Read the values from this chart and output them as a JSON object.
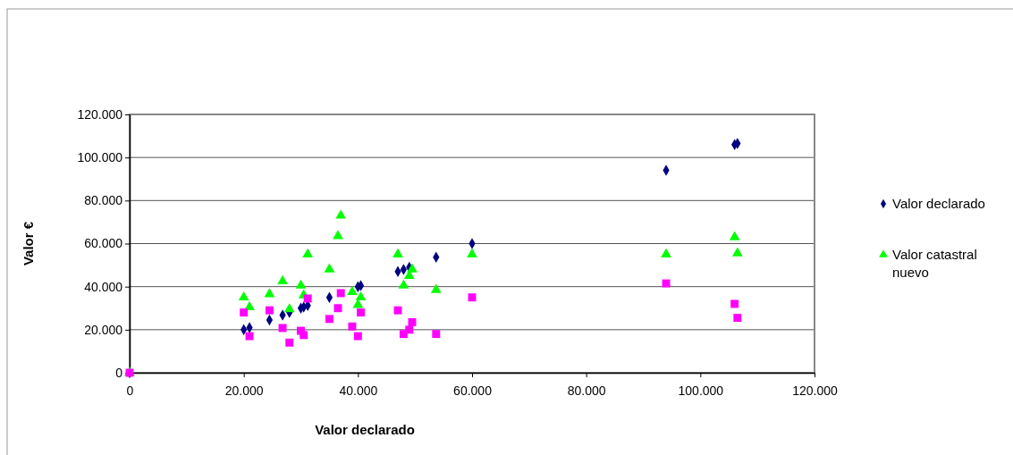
{
  "chart_data": {
    "type": "scatter",
    "xlabel": "Valor declarado",
    "ylabel": "Valor €",
    "xlim": [
      0,
      120000
    ],
    "ylim": [
      0,
      120000
    ],
    "xticks": [
      {
        "value": 0,
        "label": "0"
      },
      {
        "value": 20000,
        "label": "20.000"
      },
      {
        "value": 40000,
        "label": "40.000"
      },
      {
        "value": 60000,
        "label": "60.000"
      },
      {
        "value": 80000,
        "label": "80.000"
      },
      {
        "value": 100000,
        "label": "100.000"
      },
      {
        "value": 120000,
        "label": "120.000"
      }
    ],
    "yticks": [
      {
        "value": 0,
        "label": "0"
      },
      {
        "value": 20000,
        "label": "20.000"
      },
      {
        "value": 40000,
        "label": "40.000"
      },
      {
        "value": 60000,
        "label": "60.000"
      },
      {
        "value": 80000,
        "label": "80.000"
      },
      {
        "value": 100000,
        "label": "100.000"
      },
      {
        "value": 120000,
        "label": "120.000"
      }
    ],
    "grid": "y",
    "legend": "right",
    "x": [
      0,
      20000,
      21000,
      24500,
      26800,
      28000,
      30000,
      30500,
      31200,
      35000,
      36500,
      37000,
      39000,
      40000,
      40500,
      47000,
      48000,
      49000,
      49500,
      53700,
      60000,
      94000,
      106000,
      106500
    ],
    "series": [
      {
        "name": "Valor declarado",
        "color": "#000080",
        "marker": "diamond",
        "values": [
          0,
          20000,
          21000,
          24500,
          26800,
          28000,
          30000,
          30500,
          31200,
          35000,
          null,
          null,
          null,
          40000,
          40500,
          47000,
          48000,
          49000,
          null,
          53700,
          60000,
          94000,
          106000,
          106500
        ]
      },
      {
        "name": "Valor catastral nuevo",
        "color": "#00ff00",
        "marker": "triangle",
        "values": [
          0,
          35000,
          30500,
          36500,
          42500,
          29500,
          40500,
          36000,
          55000,
          48000,
          63500,
          73000,
          37500,
          31500,
          35000,
          55000,
          40500,
          45000,
          48000,
          38500,
          55000,
          55000,
          63000,
          55500
        ]
      },
      {
        "color": "#ff00ff",
        "marker": "square",
        "values": [
          0,
          28000,
          17000,
          29000,
          20800,
          14000,
          19500,
          17500,
          34500,
          25000,
          30000,
          37000,
          21500,
          17000,
          28000,
          29000,
          18000,
          20000,
          23500,
          18000,
          35000,
          41500,
          32000,
          25500
        ]
      }
    ]
  }
}
